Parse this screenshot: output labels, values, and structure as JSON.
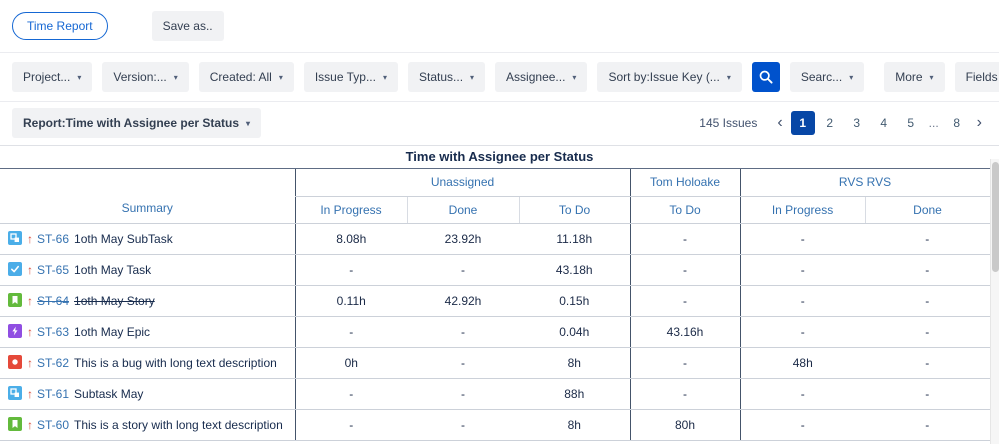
{
  "toolbar": {
    "time_report": "Time Report",
    "save_as": "Save as.."
  },
  "filters": [
    {
      "label": "Project..."
    },
    {
      "label": "Version:..."
    },
    {
      "label": "Created: All"
    },
    {
      "label": "Issue Typ..."
    },
    {
      "label": "Status..."
    },
    {
      "label": "Assignee..."
    },
    {
      "label": "Sort by:Issue Key (..."
    }
  ],
  "search": {
    "label": "Searc..."
  },
  "right_filters": [
    {
      "label": "More"
    },
    {
      "label": "Fields"
    }
  ],
  "report_bar": {
    "selector": "Report:Time with Assignee per Status",
    "issues_count": "145 Issues",
    "pages": [
      "1",
      "2",
      "3",
      "4",
      "5",
      "...",
      "8"
    ],
    "active_page": "1",
    "prev": "‹",
    "next": "›"
  },
  "table": {
    "title": "Time with Assignee per Status",
    "summary_header": "Summary",
    "groups": [
      {
        "label": "Unassigned",
        "columns": [
          "In Progress",
          "Done",
          "To Do"
        ]
      },
      {
        "label": "Tom Holoake",
        "columns": [
          "To Do"
        ]
      },
      {
        "label": "RVS RVS",
        "columns": [
          "In Progress",
          "Done"
        ]
      }
    ],
    "rows": [
      {
        "type": "subtask",
        "key": "ST-66",
        "summary": "1oth May SubTask",
        "resolved": false,
        "values": [
          "8.08h",
          "23.92h",
          "11.18h",
          "-",
          "-",
          "-"
        ]
      },
      {
        "type": "task",
        "key": "ST-65",
        "summary": "1oth May Task",
        "resolved": false,
        "values": [
          "-",
          "-",
          "43.18h",
          "-",
          "-",
          "-"
        ]
      },
      {
        "type": "story",
        "key": "ST-64",
        "summary": "1oth May Story",
        "resolved": true,
        "values": [
          "0.11h",
          "42.92h",
          "0.15h",
          "-",
          "-",
          "-"
        ]
      },
      {
        "type": "epic",
        "key": "ST-63",
        "summary": "1oth May Epic",
        "resolved": false,
        "values": [
          "-",
          "-",
          "0.04h",
          "43.16h",
          "-",
          "-"
        ]
      },
      {
        "type": "bug",
        "key": "ST-62",
        "summary": "This is a bug with long text description",
        "resolved": false,
        "values": [
          "0h",
          "-",
          "8h",
          "-",
          "48h",
          "-"
        ]
      },
      {
        "type": "subtask",
        "key": "ST-61",
        "summary": "Subtask May",
        "resolved": false,
        "values": [
          "-",
          "-",
          "88h",
          "-",
          "-",
          "-"
        ]
      },
      {
        "type": "story",
        "key": "ST-60",
        "summary": "This is a story with long text description",
        "resolved": false,
        "values": [
          "-",
          "-",
          "8h",
          "80h",
          "-",
          "-"
        ]
      }
    ]
  },
  "colors": {
    "accent_blue": "#0052CC",
    "link_blue": "#3572B0",
    "active_page_bg": "#0747A6",
    "priority_high": "#D94C38",
    "group_border": "#44546A",
    "issue_types": {
      "subtask": "#4BAEE8",
      "task": "#4BADE8",
      "story": "#63BA3C",
      "epic": "#904EE2",
      "bug": "#E5493A"
    }
  }
}
